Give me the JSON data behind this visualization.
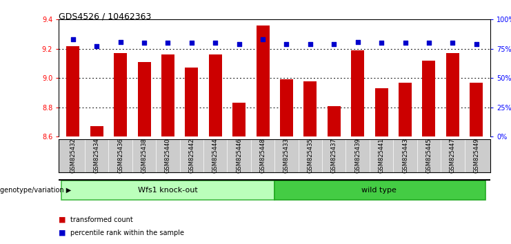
{
  "title": "GDS4526 / 10462363",
  "samples": [
    "GSM825432",
    "GSM825434",
    "GSM825436",
    "GSM825438",
    "GSM825440",
    "GSM825442",
    "GSM825444",
    "GSM825446",
    "GSM825448",
    "GSM825433",
    "GSM825435",
    "GSM825437",
    "GSM825439",
    "GSM825441",
    "GSM825443",
    "GSM825445",
    "GSM825447",
    "GSM825449"
  ],
  "bar_values": [
    9.22,
    8.67,
    9.17,
    9.11,
    9.16,
    9.07,
    9.16,
    8.83,
    9.36,
    8.99,
    8.98,
    8.81,
    9.19,
    8.93,
    8.97,
    9.12,
    9.17,
    8.97
  ],
  "percentile_values": [
    83,
    77,
    81,
    80,
    80,
    80,
    80,
    79,
    83,
    79,
    79,
    79,
    81,
    80,
    80,
    80,
    80,
    79
  ],
  "bar_color": "#cc0000",
  "dot_color": "#0000cc",
  "ylim_left": [
    8.6,
    9.4
  ],
  "ylim_right": [
    0,
    100
  ],
  "yticks_left": [
    8.6,
    8.8,
    9.0,
    9.2,
    9.4
  ],
  "yticks_right": [
    0,
    25,
    50,
    75,
    100
  ],
  "ytick_labels_right": [
    "0",
    "25",
    "50",
    "75",
    "100%"
  ],
  "grid_values": [
    8.8,
    9.0,
    9.2
  ],
  "group1_label": "Wfs1 knock-out",
  "group2_label": "wild type",
  "group1_color": "#bbffbb",
  "group2_color": "#44cc44",
  "group1_count": 9,
  "group2_count": 9,
  "legend_bar_label": "transformed count",
  "legend_dot_label": "percentile rank within the sample",
  "genotype_label": "genotype/variation",
  "fig_bg_color": "#ffffff",
  "tick_bg_color": "#cccccc"
}
